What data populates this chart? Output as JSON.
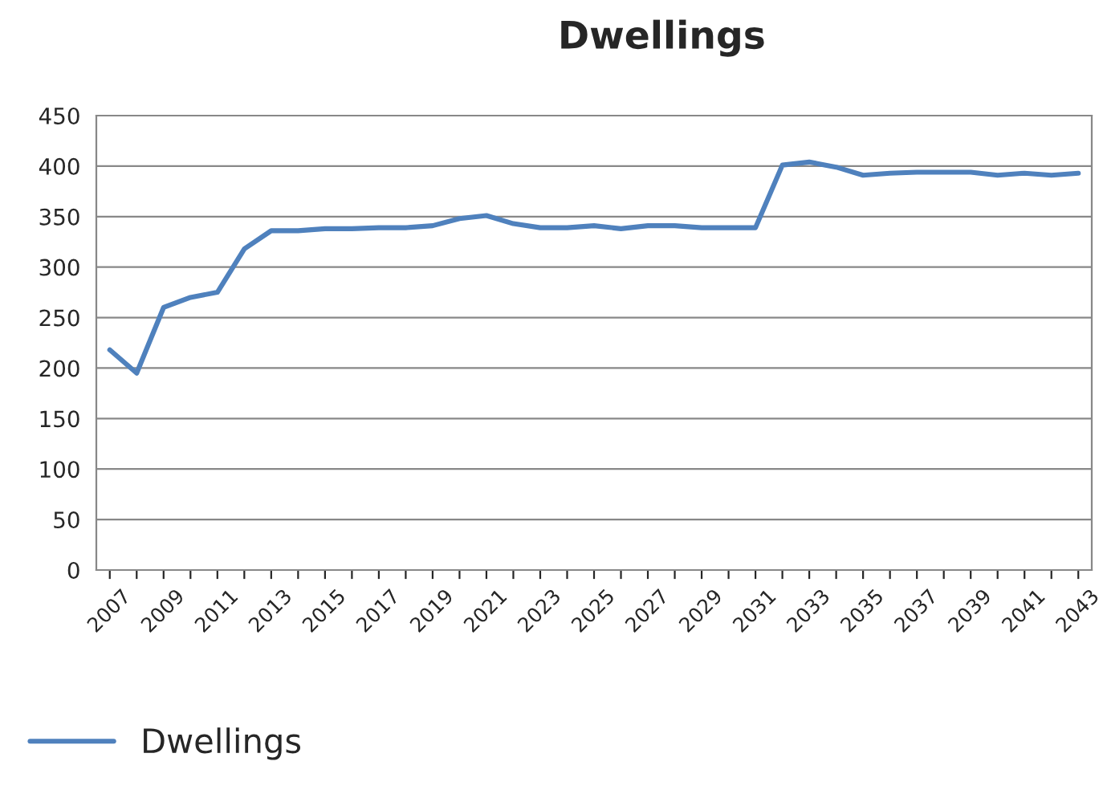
{
  "chart_data": {
    "type": "line",
    "title": "Dwellings",
    "categories": [
      "2007",
      null,
      "2009",
      null,
      "2011",
      null,
      "2013",
      null,
      "2015",
      null,
      "2017",
      null,
      "2019",
      null,
      "2021",
      null,
      "2023",
      null,
      "2025",
      null,
      "2027",
      null,
      "2029",
      null,
      "2031",
      null,
      "2033",
      null,
      "2035",
      null,
      "2037",
      null,
      "2039",
      null,
      "2041",
      null,
      "2043"
    ],
    "series": [
      {
        "name": "Dwellings",
        "color": "#4f81bd",
        "values": [
          218,
          195,
          260,
          270,
          275,
          318,
          336,
          336,
          338,
          338,
          339,
          339,
          341,
          348,
          351,
          343,
          339,
          339,
          341,
          338,
          341,
          341,
          339,
          339,
          339,
          401,
          404,
          399,
          391,
          393,
          394,
          394,
          394,
          391,
          393,
          391,
          393
        ]
      }
    ],
    "ylim": [
      0,
      450
    ],
    "yticks": [
      0,
      50,
      100,
      150,
      200,
      250,
      300,
      350,
      400,
      450
    ],
    "grid": "y",
    "legend": "bottom left",
    "marker": "none",
    "line_style": "solid"
  }
}
